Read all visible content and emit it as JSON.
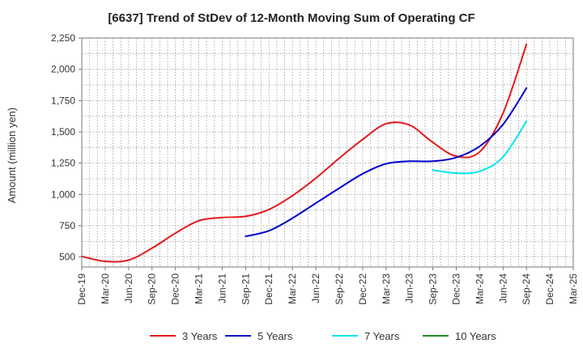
{
  "chart_data": {
    "type": "line",
    "title": "[6637]  Trend of StDev of 12-Month Moving Sum of Operating CF",
    "ylabel": "Amount (million yen)",
    "xlabel": "",
    "ylim": [
      420,
      2250
    ],
    "yticks": [
      500,
      750,
      1000,
      1250,
      1500,
      1750,
      2000,
      2250
    ],
    "ytick_labels": [
      "500",
      "750",
      "1,000",
      "1,250",
      "1,500",
      "1,750",
      "2,000",
      "2,250"
    ],
    "x_categories": [
      "Dec-19",
      "Mar-20",
      "Jun-20",
      "Sep-20",
      "Dec-20",
      "Mar-21",
      "Jun-21",
      "Sep-21",
      "Dec-21",
      "Mar-22",
      "Jun-22",
      "Sep-22",
      "Dec-22",
      "Mar-23",
      "Jun-23",
      "Sep-23",
      "Dec-23",
      "Mar-24",
      "Jun-24",
      "Sep-24",
      "Dec-24",
      "Mar-25"
    ],
    "grid": true,
    "legend_position": "bottom",
    "series": [
      {
        "name": "3 Years",
        "color": "#e31a1c",
        "start_index": 0,
        "values": [
          505,
          465,
          475,
          570,
          690,
          790,
          815,
          825,
          880,
          990,
          1130,
          1290,
          1440,
          1565,
          1555,
          1415,
          1305,
          1340,
          1650,
          2200
        ]
      },
      {
        "name": "5 Years",
        "color": "#0000cc",
        "start_index": 7,
        "values": [
          665,
          710,
          810,
          930,
          1050,
          1165,
          1245,
          1265,
          1265,
          1295,
          1385,
          1560,
          1850
        ]
      },
      {
        "name": "7 Years",
        "color": "#00e5ee",
        "start_index": 15,
        "values": [
          1195,
          1170,
          1185,
          1300,
          1585
        ]
      },
      {
        "name": "10 Years",
        "color": "#228b22",
        "start_index": 0,
        "values": []
      }
    ]
  }
}
